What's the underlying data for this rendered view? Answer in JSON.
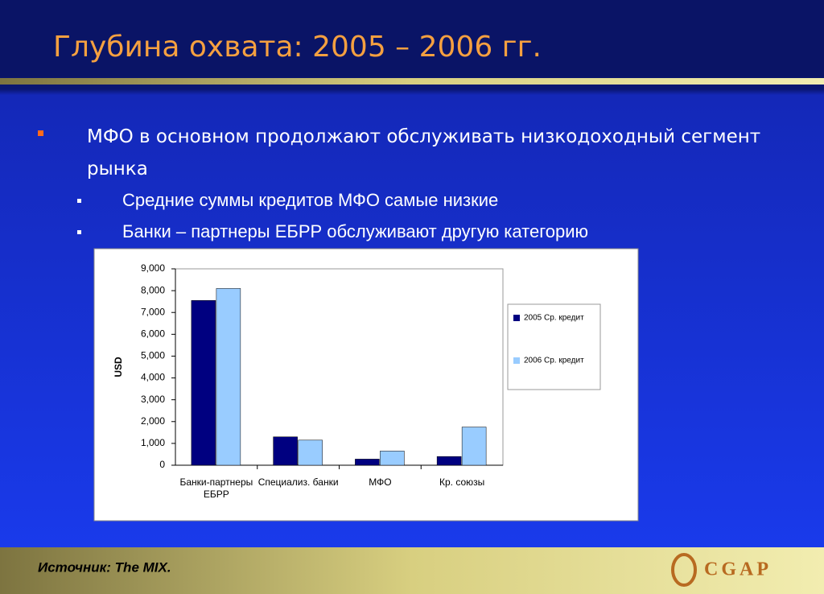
{
  "slide": {
    "title": "Глубина охвата: 2005 – 2006 гг.",
    "bullet": "МФО в основном продолжают обслуживать низкодоходный сегмент рынка",
    "sub_bullets": [
      "Средние суммы кредитов МФО самые низкие",
      "Банки – партнеры ЕБРР обслуживают другую категорию"
    ],
    "source": "Источник: The MIX.",
    "logo": "CGAP"
  },
  "chart_data": {
    "type": "bar",
    "categories": [
      "Банки-партнеры ЕБРР",
      "Специализ. банки",
      "МФО",
      "Кр. союзы"
    ],
    "series": [
      {
        "name": "2005 Ср. кредит",
        "color": "#000080",
        "values": [
          7550,
          1300,
          280,
          400
        ]
      },
      {
        "name": "2006 Ср. кредит",
        "color": "#99ccff",
        "values": [
          8100,
          1150,
          650,
          1750
        ]
      }
    ],
    "ylabel": "USD",
    "ylim": [
      0,
      9000
    ],
    "yticks": [
      0,
      {
        "value": 1000,
        "label": "1,000"
      },
      {
        "value": 2000,
        "label": "2,000"
      },
      {
        "value": 3000,
        "label": "3,000"
      },
      {
        "value": 4000,
        "label": "4,000"
      },
      {
        "value": 5000,
        "label": "5,000"
      },
      {
        "value": 6000,
        "label": "6,000"
      },
      {
        "value": 7000,
        "label": "7,000"
      },
      {
        "value": 8000,
        "label": "8,000"
      },
      {
        "value": 9000,
        "label": "9,000"
      }
    ],
    "legend": "right"
  }
}
